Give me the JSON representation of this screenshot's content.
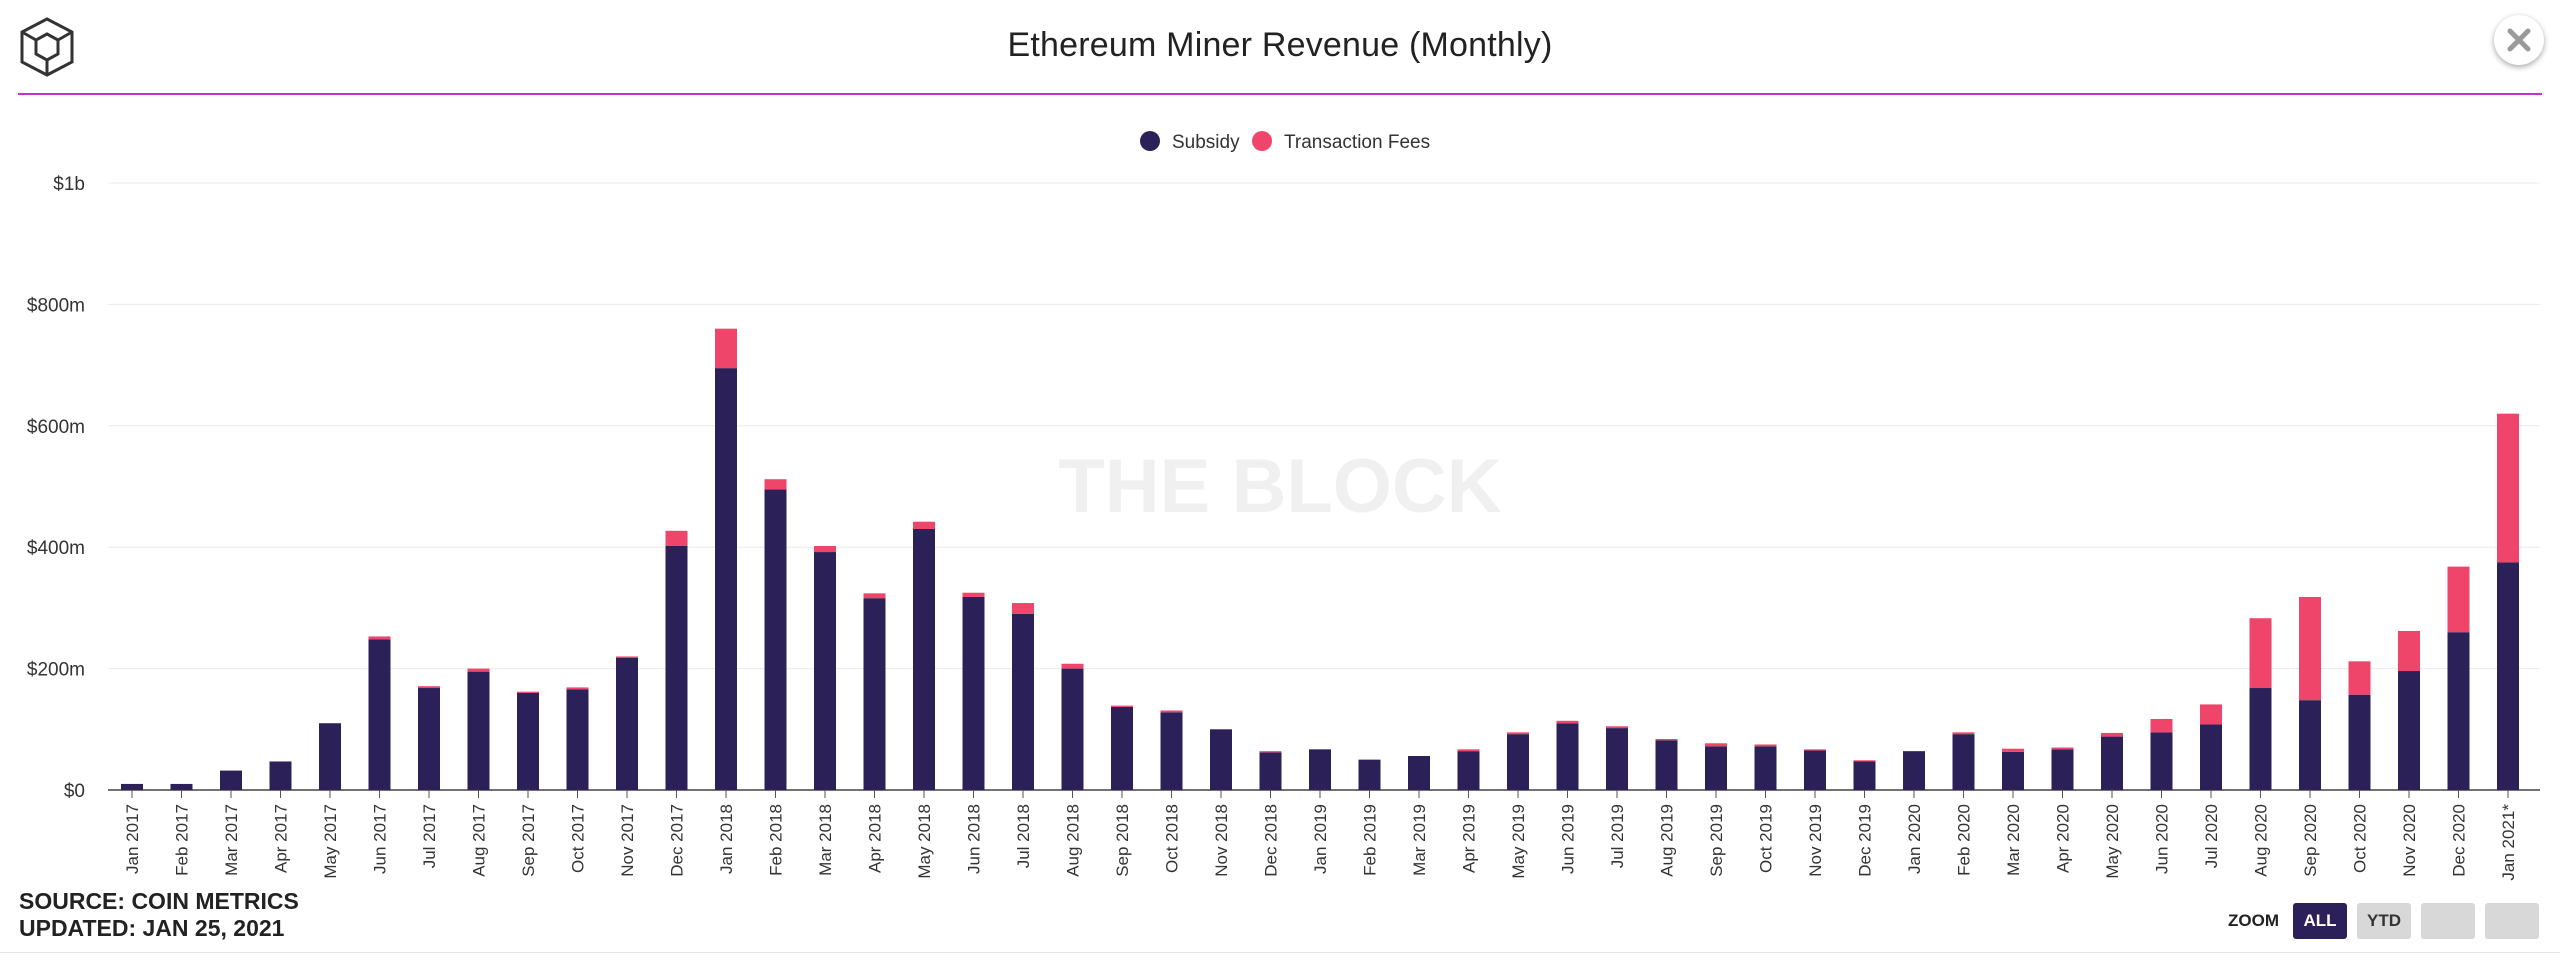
{
  "header": {
    "title": "Ethereum Miner Revenue (Monthly)",
    "accent_color": "#c531c8"
  },
  "icons": {
    "logo": "the-block-cube-logo",
    "close": "close-icon"
  },
  "chart_data": {
    "type": "bar",
    "stacked": true,
    "title": "Ethereum Miner Revenue (Monthly)",
    "watermark": "THE BLOCK",
    "legend_position": "top-center",
    "grid": true,
    "ylim": [
      0,
      1000
    ],
    "yticks": [
      {
        "value": 0,
        "label": "$0"
      },
      {
        "value": 200,
        "label": "$200m"
      },
      {
        "value": 400,
        "label": "$400m"
      },
      {
        "value": 600,
        "label": "$600m"
      },
      {
        "value": 800,
        "label": "$800m"
      },
      {
        "value": 1000,
        "label": "$1b"
      }
    ],
    "categories": [
      "Jan 2017",
      "Feb 2017",
      "Mar 2017",
      "Apr 2017",
      "May 2017",
      "Jun 2017",
      "Jul 2017",
      "Aug 2017",
      "Sep 2017",
      "Oct 2017",
      "Nov 2017",
      "Dec 2017",
      "Jan 2018",
      "Feb 2018",
      "Mar 2018",
      "Apr 2018",
      "May 2018",
      "Jun 2018",
      "Jul 2018",
      "Aug 2018",
      "Sep 2018",
      "Oct 2018",
      "Nov 2018",
      "Dec 2018",
      "Jan 2019",
      "Feb 2019",
      "Mar 2019",
      "Apr 2019",
      "May 2019",
      "Jun 2019",
      "Jul 2019",
      "Aug 2019",
      "Sep 2019",
      "Oct 2019",
      "Nov 2019",
      "Dec 2019",
      "Jan 2020",
      "Feb 2020",
      "Mar 2020",
      "Apr 2020",
      "May 2020",
      "Jun 2020",
      "Jul 2020",
      "Aug 2020",
      "Sep 2020",
      "Oct 2020",
      "Nov 2020",
      "Dec 2020",
      "Jan 2021*"
    ],
    "series": [
      {
        "name": "Subsidy",
        "color": "#2b2057",
        "values": [
          10,
          10,
          32,
          47,
          110,
          248,
          168,
          195,
          160,
          166,
          218,
          402,
          695,
          495,
          392,
          316,
          430,
          318,
          290,
          200,
          137,
          128,
          100,
          62,
          67,
          50,
          56,
          64,
          92,
          110,
          102,
          82,
          72,
          72,
          65,
          47,
          64,
          92,
          63,
          67,
          88,
          95,
          108,
          168,
          148,
          157,
          196,
          260,
          375
        ]
      },
      {
        "name": "Transaction Fees",
        "color": "#f0456b",
        "values": [
          0,
          0,
          0,
          0,
          0,
          5,
          3,
          5,
          2,
          3,
          2,
          25,
          65,
          17,
          10,
          8,
          12,
          7,
          18,
          8,
          2,
          3,
          0,
          2,
          0,
          0,
          0,
          3,
          3,
          4,
          3,
          2,
          5,
          3,
          2,
          2,
          0,
          3,
          5,
          3,
          6,
          22,
          33,
          115,
          170,
          55,
          66,
          108,
          245
        ]
      }
    ]
  },
  "footer": {
    "source": "SOURCE: COIN METRICS",
    "updated": "UPDATED: JAN 25, 2021"
  },
  "zoom": {
    "label": "ZOOM",
    "buttons": [
      "ALL",
      "YTD"
    ],
    "active": "ALL"
  }
}
